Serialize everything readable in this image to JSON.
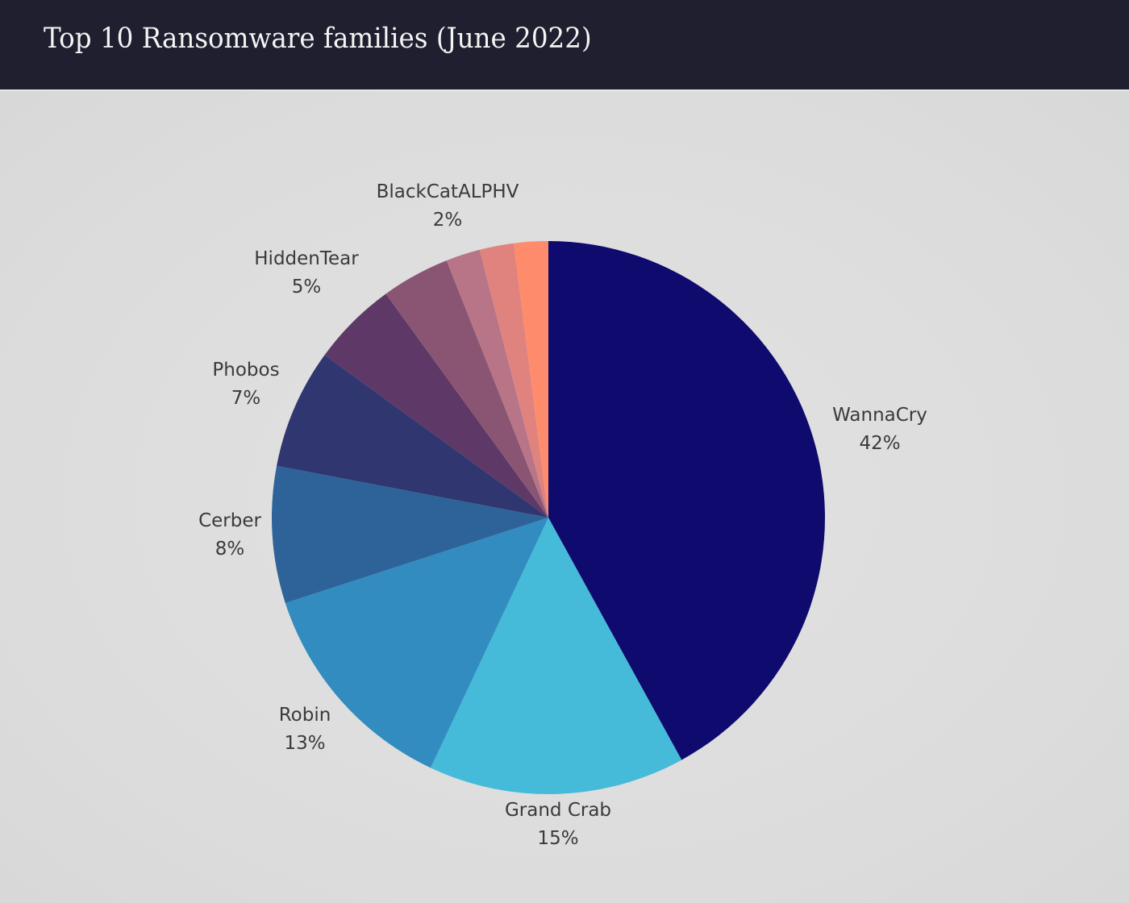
{
  "header": {
    "title": "Top 10 Ransomware families (June 2022)",
    "background": "#1f1f2f"
  },
  "chart_data": {
    "type": "pie",
    "title": "Top 10 Ransomware families (June 2022)",
    "start_angle": "12 o'clock",
    "direction": "clockwise",
    "slices": [
      {
        "label": "WannaCry",
        "value": 42,
        "display": "42%",
        "color": "#0e0a6e",
        "labeled": true
      },
      {
        "label": "Grand Crab",
        "value": 15,
        "display": "15%",
        "color": "#45bad9",
        "labeled": true
      },
      {
        "label": "Robin",
        "value": 13,
        "display": "13%",
        "color": "#328cbf",
        "labeled": true
      },
      {
        "label": "Cerber",
        "value": 8,
        "display": "8%",
        "color": "#2e6399",
        "labeled": true
      },
      {
        "label": "Phobos",
        "value": 7,
        "display": "7%",
        "color": "#2f3670",
        "labeled": true
      },
      {
        "label": "HiddenTear",
        "value": 5,
        "display": "5%",
        "color": "#5e3867",
        "labeled": true
      },
      {
        "label": "",
        "value": 4,
        "display": "",
        "color": "#8a5573",
        "labeled": false
      },
      {
        "label": "BlackCatALPHV",
        "value": 2,
        "display": "2%",
        "color": "#b87587",
        "labeled": true
      },
      {
        "label": "",
        "value": 2,
        "display": "",
        "color": "#e0837f",
        "labeled": false
      },
      {
        "label": "",
        "value": 2,
        "display": "",
        "color": "#fe8c6c",
        "labeled": false
      }
    ],
    "labels": [
      {
        "name": "WannaCry",
        "pct": "42%"
      },
      {
        "name": "Grand Crab",
        "pct": "15%"
      },
      {
        "name": "Robin",
        "pct": "13%"
      },
      {
        "name": "Cerber",
        "pct": "8%"
      },
      {
        "name": "Phobos",
        "pct": "7%"
      },
      {
        "name": "HiddenTear",
        "pct": "5%"
      },
      {
        "name": "BlackCatALPHV",
        "pct": "2%"
      }
    ],
    "legend": "none (direct labels)"
  }
}
